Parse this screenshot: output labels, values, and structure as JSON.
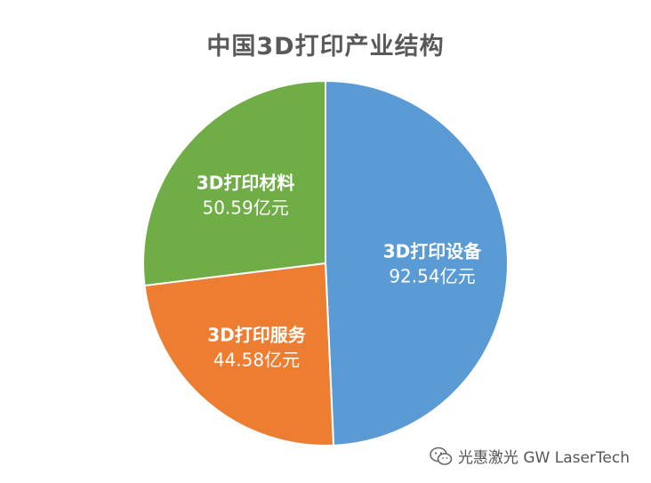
{
  "chart_data": {
    "type": "pie",
    "title": "中国3D打印产业结构",
    "unit": "亿元",
    "slices": [
      {
        "label": "3D打印设备",
        "value": 92.54,
        "value_text": "92.54亿元",
        "color": "#5b9bd5"
      },
      {
        "label": "3D打印服务",
        "value": 44.58,
        "value_text": "44.58亿元",
        "color": "#ed7d31"
      },
      {
        "label": "3D打印材料",
        "value": 50.59,
        "value_text": "50.59亿元",
        "color": "#70ad47"
      }
    ],
    "start_angle": "12 o'clock",
    "direction": "clockwise",
    "legend": "none",
    "labels": "inside slices"
  },
  "watermark": {
    "icon": "wechat-icon",
    "text": "光惠激光 GW LaserTech"
  }
}
